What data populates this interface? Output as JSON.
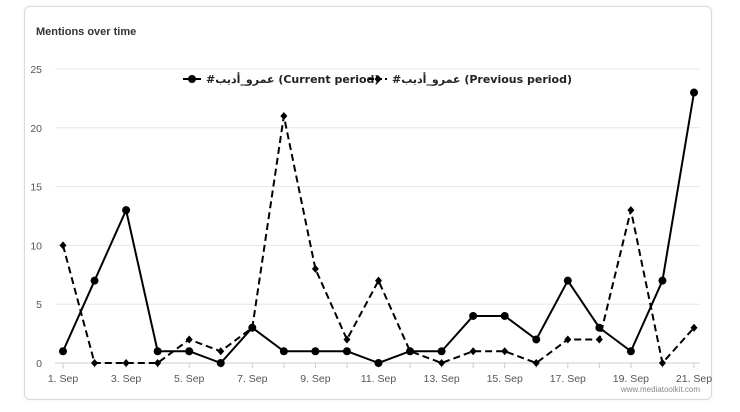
{
  "card": {
    "title": "Mentions over time"
  },
  "credit": "www.mediatoolkit.com",
  "chart_data": {
    "type": "line",
    "title": "Mentions over time",
    "x": [
      "1. Sep",
      "2. Sep",
      "3. Sep",
      "4. Sep",
      "5. Sep",
      "6. Sep",
      "7. Sep",
      "8. Sep",
      "9. Sep",
      "10. Sep",
      "11. Sep",
      "12. Sep",
      "13. Sep",
      "14. Sep",
      "15. Sep",
      "16. Sep",
      "17. Sep",
      "18. Sep",
      "19. Sep",
      "20. Sep",
      "21. Sep"
    ],
    "x_tick_labels": [
      "1. Sep",
      "3. Sep",
      "5. Sep",
      "7. Sep",
      "9. Sep",
      "11. Sep",
      "13. Sep",
      "15. Sep",
      "17. Sep",
      "19. Sep",
      "21. Sep"
    ],
    "ylim": [
      0,
      25
    ],
    "y_ticks": [
      0,
      5,
      10,
      15,
      20,
      25
    ],
    "grid": true,
    "legend_position": "top-center",
    "series": [
      {
        "name": "#عمرو_أديب (Current period)",
        "style": "solid",
        "marker": "circle",
        "color": "#000000",
        "values": [
          1,
          7,
          13,
          1,
          1,
          0,
          3,
          1,
          1,
          1,
          0,
          1,
          1,
          4,
          4,
          2,
          7,
          3,
          1,
          7,
          23
        ]
      },
      {
        "name": "#عمرو_أديب (Previous period)",
        "style": "dashed",
        "marker": "diamond",
        "color": "#000000",
        "values": [
          10,
          0,
          0,
          0,
          2,
          1,
          3,
          21,
          8,
          2,
          7,
          1,
          0,
          1,
          1,
          0,
          2,
          2,
          13,
          0,
          3
        ]
      }
    ]
  }
}
